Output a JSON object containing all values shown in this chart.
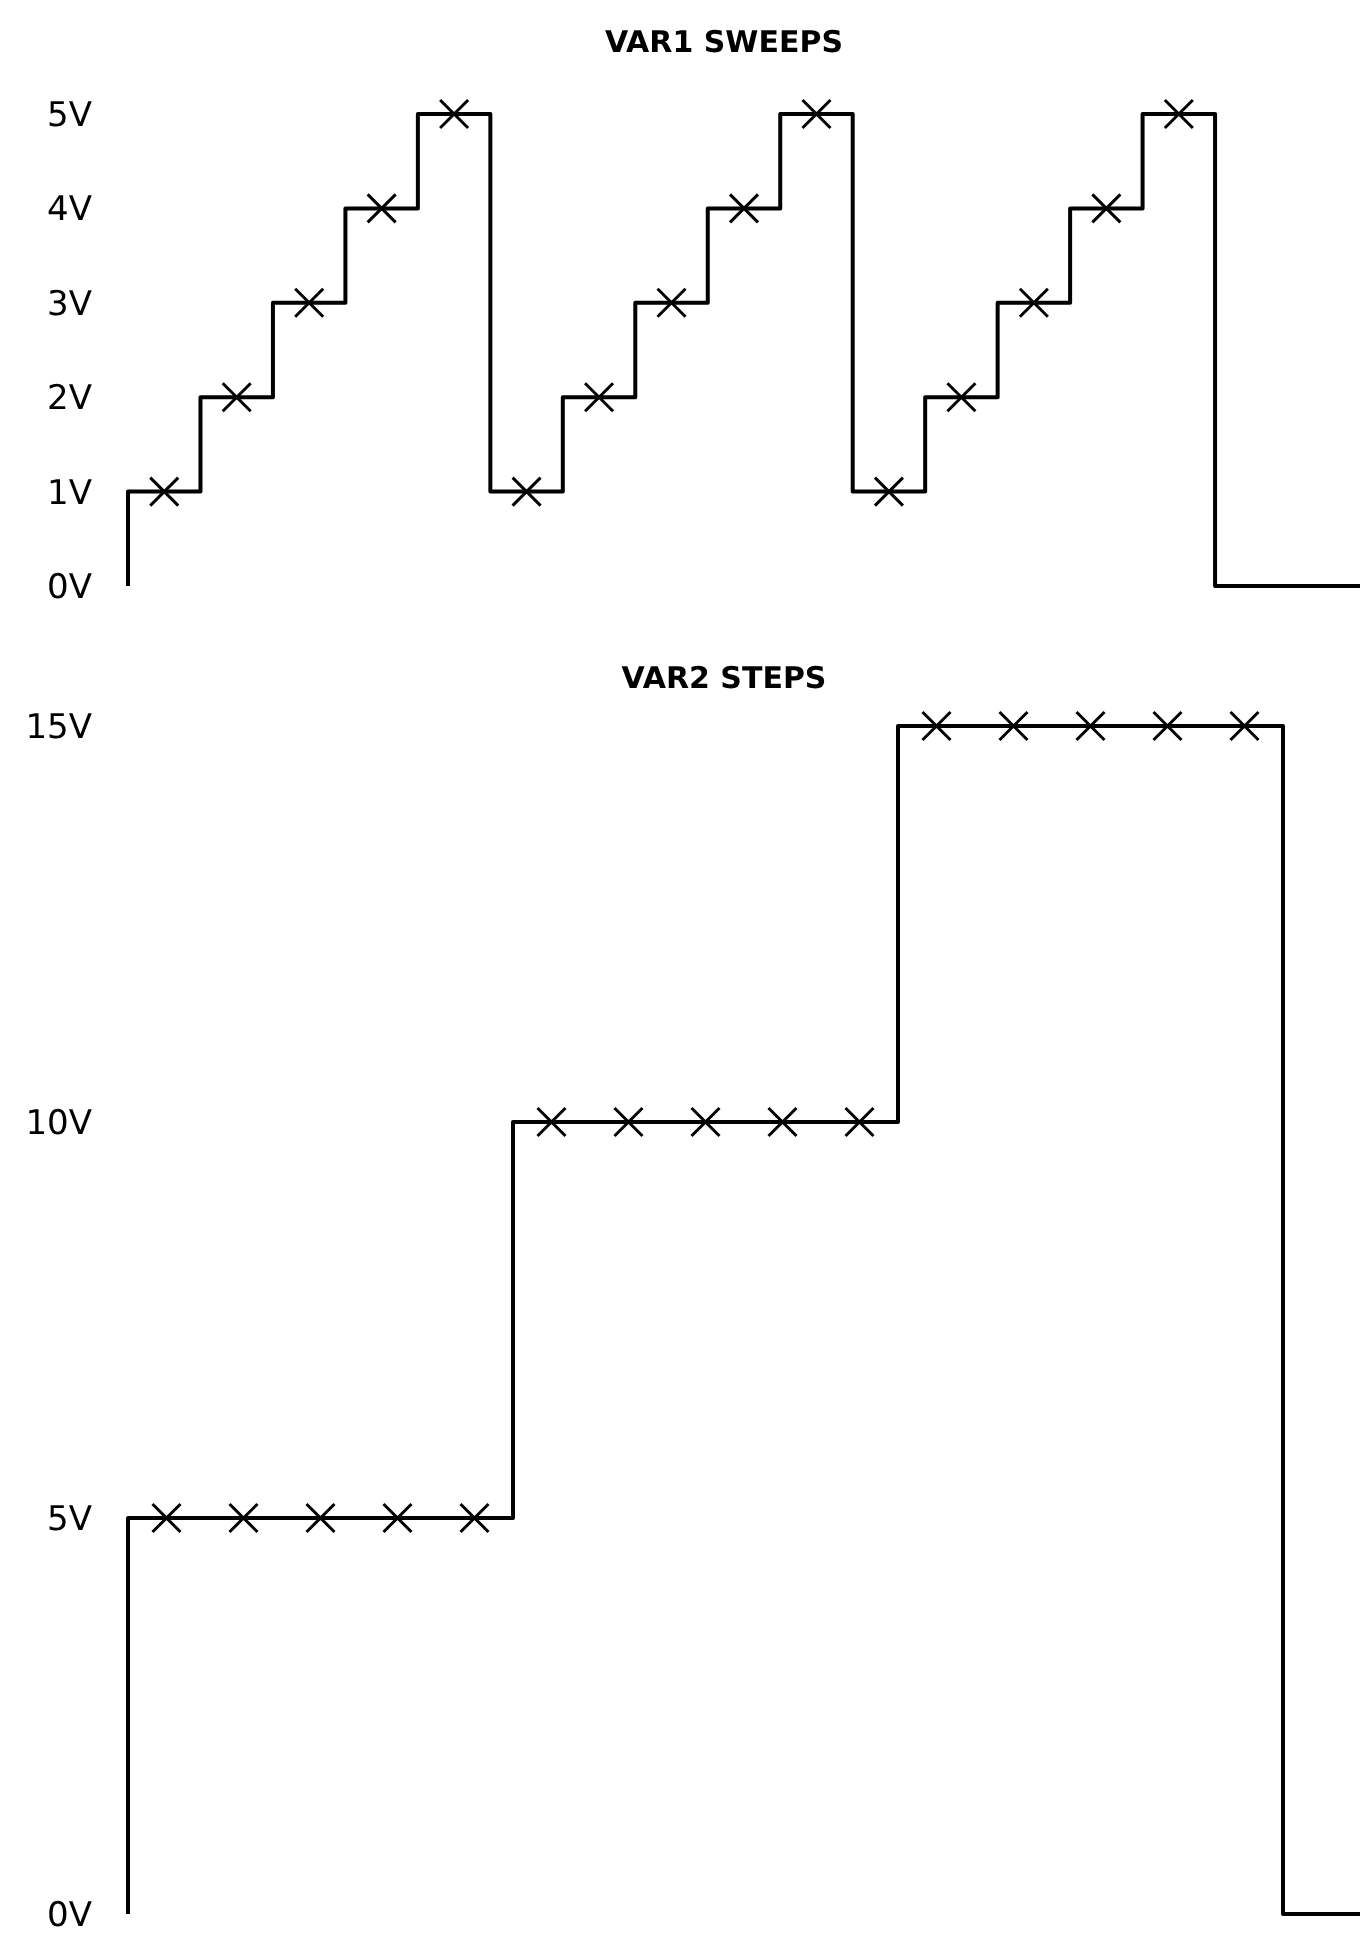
{
  "chart_data": [
    {
      "type": "step",
      "title": "VAR1 SWEEPS",
      "categories": [
        null,
        null,
        null,
        null,
        null,
        null,
        null,
        null,
        null,
        null,
        null,
        null,
        null,
        null,
        null,
        null,
        null,
        null,
        null,
        null,
        null,
        null,
        null,
        null,
        null,
        null,
        null,
        null,
        null,
        null,
        null,
        null,
        null,
        null,
        null
      ],
      "ylim": [
        0,
        5
      ],
      "yticks": [
        {
          "value": 0,
          "label": "0V"
        },
        {
          "value": 1,
          "label": "1V"
        },
        {
          "value": 2,
          "label": "2V"
        },
        {
          "value": 3,
          "label": "3V"
        },
        {
          "value": 4,
          "label": "4V"
        },
        {
          "value": 5,
          "label": "5V"
        }
      ],
      "tick_labels": "y",
      "grid": false,
      "legend": false,
      "series": [
        {
          "type": "step",
          "color": "#000000",
          "marker": "none",
          "values": [
            0,
            1,
            1,
            2,
            2,
            3,
            3,
            4,
            4,
            5,
            5,
            1,
            1,
            2,
            2,
            3,
            3,
            4,
            4,
            5,
            5,
            1,
            1,
            2,
            2,
            3,
            3,
            4,
            4,
            5,
            5,
            0,
            0,
            0,
            0
          ]
        },
        {
          "type": "scatter",
          "color": "#000000",
          "marker": "cross",
          "values": [
            null,
            1,
            null,
            2,
            null,
            3,
            null,
            4,
            null,
            5,
            null,
            1,
            null,
            2,
            null,
            3,
            null,
            4,
            null,
            5,
            null,
            1,
            null,
            2,
            null,
            3,
            null,
            4,
            null,
            5,
            null,
            null,
            null,
            null,
            null
          ]
        }
      ]
    },
    {
      "type": "step",
      "title": "VAR2 STEPS",
      "categories": [
        null,
        null,
        null,
        null,
        null,
        null,
        null,
        null,
        null,
        null,
        null,
        null,
        null,
        null,
        null,
        null,
        null,
        null,
        null,
        null,
        null,
        null,
        null,
        null,
        null,
        null,
        null,
        null,
        null,
        null,
        null,
        null,
        null
      ],
      "ylim": [
        0,
        15
      ],
      "yticks": [
        {
          "value": 0,
          "label": "0V"
        },
        {
          "value": 5,
          "label": "5V"
        },
        {
          "value": 10,
          "label": "10V"
        },
        {
          "value": 15,
          "label": "15V"
        }
      ],
      "tick_labels": "y",
      "grid": false,
      "legend": false,
      "series": [
        {
          "type": "step",
          "color": "#000000",
          "marker": "none",
          "values": [
            0,
            5,
            5,
            5,
            5,
            5,
            5,
            5,
            5,
            5,
            5,
            10,
            10,
            10,
            10,
            10,
            10,
            10,
            10,
            10,
            10,
            15,
            15,
            15,
            15,
            15,
            15,
            15,
            15,
            15,
            15,
            0,
            0
          ]
        },
        {
          "type": "scatter",
          "color": "#000000",
          "marker": "cross",
          "values": [
            null,
            5,
            null,
            5,
            null,
            5,
            null,
            5,
            null,
            5,
            null,
            10,
            null,
            10,
            null,
            10,
            null,
            10,
            null,
            10,
            null,
            15,
            null,
            15,
            null,
            15,
            null,
            15,
            null,
            15,
            null,
            null,
            null
          ]
        }
      ]
    }
  ]
}
